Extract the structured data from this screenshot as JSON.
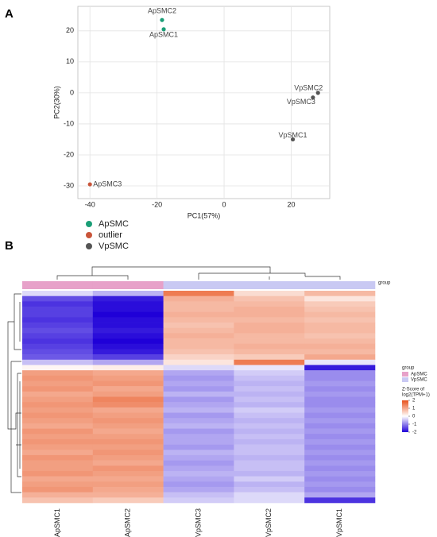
{
  "chart_data": [
    {
      "type": "scatter",
      "panel": "A",
      "xlabel": "PC1(57%)",
      "ylabel": "PC2(30%)",
      "xlim": [
        -43.6,
        31.5
      ],
      "ylim": [
        -34.1,
        27.9
      ],
      "xticks": [
        -40,
        -20,
        0,
        20
      ],
      "yticks": [
        -30,
        -20,
        -10,
        0,
        10,
        20
      ],
      "grid": true,
      "series": [
        {
          "name": "ApSMC",
          "color": "#1b9e77",
          "x": [
            -18.5,
            -18
          ],
          "values": [
            23.5,
            20.5
          ],
          "labels": [
            "ApSMC2",
            "ApSMC1"
          ]
        },
        {
          "name": "outlier",
          "color": "#c9553a",
          "x": [
            -40
          ],
          "values": [
            -29.5
          ],
          "labels": [
            "ApSMC3"
          ]
        },
        {
          "name": "VpSMC",
          "color": "#555555",
          "x": [
            28,
            26.5,
            20.5
          ],
          "values": [
            0,
            -1.5,
            -15
          ],
          "labels": [
            "VpSMC2",
            "VpSMC3",
            "VpSMC1"
          ]
        }
      ]
    },
    {
      "type": "heatmap",
      "panel": "B",
      "annotation_title": "group",
      "columns": [
        "ApSMC1",
        "ApSMC2",
        "VpSMC3",
        "VpSMC2",
        "VpSMC1"
      ],
      "column_groups": [
        "ApSMC",
        "ApSMC",
        "VpSMC",
        "VpSMC",
        "VpSMC"
      ],
      "groups": [
        {
          "name": "ApSMC",
          "color": "#e7a1c9"
        },
        {
          "name": "VpSMC",
          "color": "#c9c9f3"
        }
      ],
      "colorbar_title": [
        "Z-Score of",
        "log2(TPM+1)"
      ],
      "colors": {
        "low": "#1f00d8",
        "mid": "#ffffff",
        "high": "#e8501a"
      },
      "zlim": [
        -2,
        2
      ],
      "zticks": [
        2,
        1,
        0,
        -1,
        -2
      ],
      "values": [
        [
          -0.3,
          -0.6,
          1.5,
          0.4,
          0.8
        ],
        [
          -1.4,
          -1.8,
          0.9,
          0.7,
          0.3
        ],
        [
          -1.6,
          -1.9,
          0.8,
          0.8,
          0.6
        ],
        [
          -1.5,
          -1.9,
          0.8,
          0.9,
          0.7
        ],
        [
          -1.5,
          -2.0,
          0.9,
          0.9,
          0.8
        ],
        [
          -1.6,
          -1.9,
          0.8,
          0.8,
          0.7
        ],
        [
          -1.5,
          -1.9,
          0.7,
          0.9,
          0.8
        ],
        [
          -1.4,
          -1.8,
          0.8,
          0.9,
          0.8
        ],
        [
          -1.5,
          -1.9,
          0.9,
          0.8,
          0.7
        ],
        [
          -1.6,
          -2.0,
          0.8,
          0.8,
          0.8
        ],
        [
          -1.5,
          -1.9,
          0.8,
          0.9,
          0.9
        ],
        [
          -1.4,
          -1.8,
          0.7,
          0.8,
          0.8
        ],
        [
          -1.3,
          -1.5,
          0.5,
          0.6,
          1.0
        ],
        [
          -0.5,
          -0.7,
          0.3,
          1.5,
          -0.2
        ],
        [
          0.1,
          0.2,
          -0.3,
          -0.2,
          -1.8
        ],
        [
          1.1,
          1.0,
          -0.7,
          -0.4,
          -0.9
        ],
        [
          1.2,
          1.1,
          -0.8,
          -0.5,
          -0.9
        ],
        [
          1.1,
          1.2,
          -0.7,
          -0.6,
          -0.8
        ],
        [
          1.2,
          1.0,
          -0.8,
          -0.5,
          -0.9
        ],
        [
          1.0,
          1.1,
          -0.6,
          -0.6,
          -0.8
        ],
        [
          1.1,
          1.4,
          -0.8,
          -0.5,
          -0.9
        ],
        [
          1.2,
          1.3,
          -0.7,
          -0.6,
          -0.9
        ],
        [
          1.1,
          1.0,
          -0.6,
          -0.4,
          -0.8
        ],
        [
          1.2,
          1.1,
          -0.8,
          -0.5,
          -0.9
        ],
        [
          1.1,
          1.2,
          -0.7,
          -0.6,
          -0.8
        ],
        [
          1.0,
          1.1,
          -0.6,
          -0.5,
          -0.9
        ],
        [
          1.2,
          1.0,
          -0.8,
          -0.6,
          -0.8
        ],
        [
          1.1,
          1.1,
          -0.7,
          -0.5,
          -0.9
        ],
        [
          1.2,
          1.2,
          -0.7,
          -0.6,
          -0.8
        ],
        [
          1.1,
          1.1,
          -0.8,
          -0.5,
          -0.9
        ],
        [
          1.0,
          1.2,
          -0.6,
          -0.5,
          -0.8
        ],
        [
          1.2,
          1.1,
          -0.7,
          -0.6,
          -0.9
        ],
        [
          1.1,
          1.0,
          -0.8,
          -0.5,
          -0.8
        ],
        [
          1.1,
          1.2,
          -0.7,
          -0.5,
          -0.9
        ],
        [
          1.2,
          1.1,
          -0.6,
          -0.6,
          -0.8
        ],
        [
          1.0,
          1.0,
          -0.7,
          -0.4,
          -0.9
        ],
        [
          1.1,
          1.1,
          -0.8,
          -0.6,
          -0.8
        ],
        [
          1.2,
          1.0,
          -0.7,
          -0.5,
          -0.9
        ],
        [
          0.9,
          0.9,
          -0.5,
          -0.3,
          -0.7
        ],
        [
          0.7,
          0.6,
          -0.4,
          -0.3,
          -1.6
        ]
      ]
    }
  ]
}
